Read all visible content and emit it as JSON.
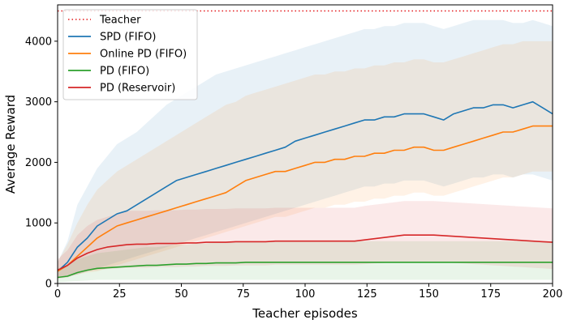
{
  "chart_data": {
    "type": "line",
    "title": "",
    "xlabel": "Teacher episodes",
    "ylabel": "Average Reward",
    "xlim": [
      0,
      200
    ],
    "ylim": [
      0,
      4600
    ],
    "xticks": [
      0,
      25,
      50,
      75,
      100,
      125,
      150,
      175,
      200
    ],
    "yticks": [
      0,
      1000,
      2000,
      3000,
      4000
    ],
    "grid": false,
    "legend_position": "upper-left",
    "reference_line": {
      "name": "Teacher",
      "value": 4500,
      "color": "#e41a1c",
      "style": "dotted"
    },
    "x": [
      0,
      4,
      8,
      12,
      16,
      20,
      24,
      28,
      32,
      36,
      40,
      44,
      48,
      52,
      56,
      60,
      64,
      68,
      72,
      76,
      80,
      84,
      88,
      92,
      96,
      100,
      104,
      108,
      112,
      116,
      120,
      124,
      128,
      132,
      136,
      140,
      144,
      148,
      152,
      156,
      160,
      164,
      168,
      172,
      176,
      180,
      184,
      188,
      192,
      196,
      200
    ],
    "series": [
      {
        "name": "SPD (FIFO)",
        "color": "#1f77b4",
        "values": [
          200,
          350,
          600,
          750,
          950,
          1050,
          1150,
          1200,
          1300,
          1400,
          1500,
          1600,
          1700,
          1750,
          1800,
          1850,
          1900,
          1950,
          2000,
          2050,
          2100,
          2150,
          2200,
          2250,
          2350,
          2400,
          2450,
          2500,
          2550,
          2600,
          2650,
          2700,
          2700,
          2750,
          2750,
          2800,
          2800,
          2800,
          2750,
          2700,
          2800,
          2850,
          2900,
          2900,
          2950,
          2950,
          2900,
          2950,
          3000,
          2900,
          2800
        ],
        "upper": [
          350,
          700,
          1300,
          1600,
          1900,
          2100,
          2300,
          2400,
          2500,
          2650,
          2800,
          2950,
          3050,
          3150,
          3250,
          3350,
          3450,
          3500,
          3550,
          3600,
          3650,
          3700,
          3750,
          3800,
          3850,
          3900,
          3950,
          4000,
          4050,
          4100,
          4150,
          4200,
          4200,
          4250,
          4250,
          4300,
          4300,
          4300,
          4250,
          4200,
          4250,
          4300,
          4350,
          4350,
          4350,
          4350,
          4300,
          4300,
          4350,
          4300,
          4250
        ],
        "lower": [
          100,
          120,
          150,
          200,
          250,
          300,
          350,
          400,
          450,
          500,
          550,
          600,
          650,
          700,
          750,
          800,
          850,
          900,
          950,
          1000,
          1050,
          1100,
          1150,
          1200,
          1250,
          1300,
          1350,
          1400,
          1450,
          1500,
          1550,
          1600,
          1600,
          1650,
          1650,
          1700,
          1700,
          1700,
          1650,
          1600,
          1650,
          1700,
          1750,
          1750,
          1800,
          1800,
          1750,
          1800,
          1800,
          1750,
          1700
        ]
      },
      {
        "name": "Online PD (FIFO)",
        "color": "#ff7f0e",
        "values": [
          200,
          300,
          450,
          600,
          750,
          850,
          950,
          1000,
          1050,
          1100,
          1150,
          1200,
          1250,
          1300,
          1350,
          1400,
          1450,
          1500,
          1600,
          1700,
          1750,
          1800,
          1850,
          1850,
          1900,
          1950,
          2000,
          2000,
          2050,
          2050,
          2100,
          2100,
          2150,
          2150,
          2200,
          2200,
          2250,
          2250,
          2200,
          2200,
          2250,
          2300,
          2350,
          2400,
          2450,
          2500,
          2500,
          2550,
          2600,
          2600,
          2600
        ],
        "upper": [
          350,
          650,
          1000,
          1300,
          1550,
          1700,
          1850,
          1950,
          2050,
          2150,
          2250,
          2350,
          2450,
          2550,
          2650,
          2750,
          2850,
          2950,
          3000,
          3100,
          3150,
          3200,
          3250,
          3300,
          3350,
          3400,
          3450,
          3450,
          3500,
          3500,
          3550,
          3550,
          3600,
          3600,
          3650,
          3650,
          3700,
          3700,
          3650,
          3650,
          3700,
          3750,
          3800,
          3850,
          3900,
          3950,
          3950,
          4000,
          4000,
          4000,
          4000
        ],
        "lower": [
          100,
          120,
          150,
          180,
          200,
          250,
          300,
          350,
          400,
          450,
          500,
          550,
          600,
          650,
          700,
          750,
          800,
          850,
          900,
          950,
          1000,
          1050,
          1100,
          1100,
          1150,
          1200,
          1250,
          1250,
          1300,
          1300,
          1350,
          1350,
          1400,
          1400,
          1450,
          1450,
          1500,
          1500,
          1450,
          1450,
          1500,
          1550,
          1600,
          1650,
          1700,
          1750,
          1750,
          1800,
          1850,
          1850,
          1850
        ]
      },
      {
        "name": "PD (FIFO)",
        "color": "#2ca02c",
        "values": [
          100,
          120,
          180,
          220,
          250,
          260,
          270,
          280,
          290,
          300,
          300,
          310,
          320,
          320,
          330,
          330,
          340,
          340,
          340,
          350,
          350,
          350,
          350,
          350,
          350,
          350,
          350,
          350,
          350,
          350,
          350,
          350,
          350,
          350,
          350,
          350,
          350,
          350,
          350,
          350,
          350,
          350,
          350,
          350,
          350,
          350,
          350,
          350,
          350,
          350,
          350
        ],
        "upper": [
          250,
          300,
          400,
          450,
          500,
          520,
          540,
          560,
          580,
          600,
          600,
          620,
          640,
          640,
          660,
          660,
          680,
          680,
          680,
          700,
          700,
          700,
          700,
          700,
          700,
          700,
          700,
          700,
          700,
          700,
          700,
          700,
          700,
          700,
          700,
          700,
          700,
          700,
          700,
          700,
          700,
          700,
          700,
          700,
          700,
          700,
          700,
          700,
          700,
          700,
          700
        ],
        "lower": [
          20,
          30,
          40,
          50,
          60,
          60,
          60,
          60,
          60,
          60,
          60,
          60,
          60,
          60,
          60,
          60,
          60,
          60,
          60,
          60,
          60,
          60,
          60,
          60,
          60,
          60,
          60,
          60,
          60,
          60,
          60,
          60,
          60,
          60,
          60,
          60,
          60,
          60,
          60,
          60,
          60,
          60,
          60,
          60,
          60,
          60,
          60,
          60,
          60,
          60,
          60
        ]
      },
      {
        "name": "PD (Reservoir)",
        "color": "#d62728",
        "values": [
          220,
          300,
          420,
          500,
          560,
          600,
          620,
          640,
          650,
          650,
          660,
          660,
          660,
          670,
          670,
          680,
          680,
          680,
          690,
          690,
          690,
          690,
          700,
          700,
          700,
          700,
          700,
          700,
          700,
          700,
          700,
          720,
          740,
          760,
          780,
          800,
          800,
          800,
          800,
          790,
          780,
          770,
          760,
          750,
          740,
          730,
          720,
          710,
          700,
          690,
          680
        ],
        "upper": [
          400,
          550,
          800,
          950,
          1050,
          1100,
          1150,
          1200,
          1200,
          1200,
          1210,
          1210,
          1210,
          1220,
          1220,
          1230,
          1230,
          1230,
          1240,
          1240,
          1240,
          1240,
          1250,
          1250,
          1250,
          1250,
          1250,
          1250,
          1250,
          1250,
          1250,
          1280,
          1300,
          1320,
          1340,
          1360,
          1360,
          1360,
          1360,
          1350,
          1340,
          1330,
          1320,
          1310,
          1300,
          1290,
          1280,
          1270,
          1260,
          1250,
          1240
        ],
        "lower": [
          80,
          100,
          150,
          200,
          220,
          240,
          250,
          260,
          260,
          260,
          270,
          270,
          270,
          280,
          280,
          290,
          290,
          290,
          300,
          300,
          300,
          300,
          310,
          310,
          310,
          310,
          310,
          310,
          310,
          310,
          310,
          320,
          330,
          340,
          350,
          360,
          360,
          360,
          360,
          350,
          340,
          330,
          320,
          310,
          300,
          290,
          280,
          270,
          260,
          250,
          240
        ]
      }
    ]
  }
}
